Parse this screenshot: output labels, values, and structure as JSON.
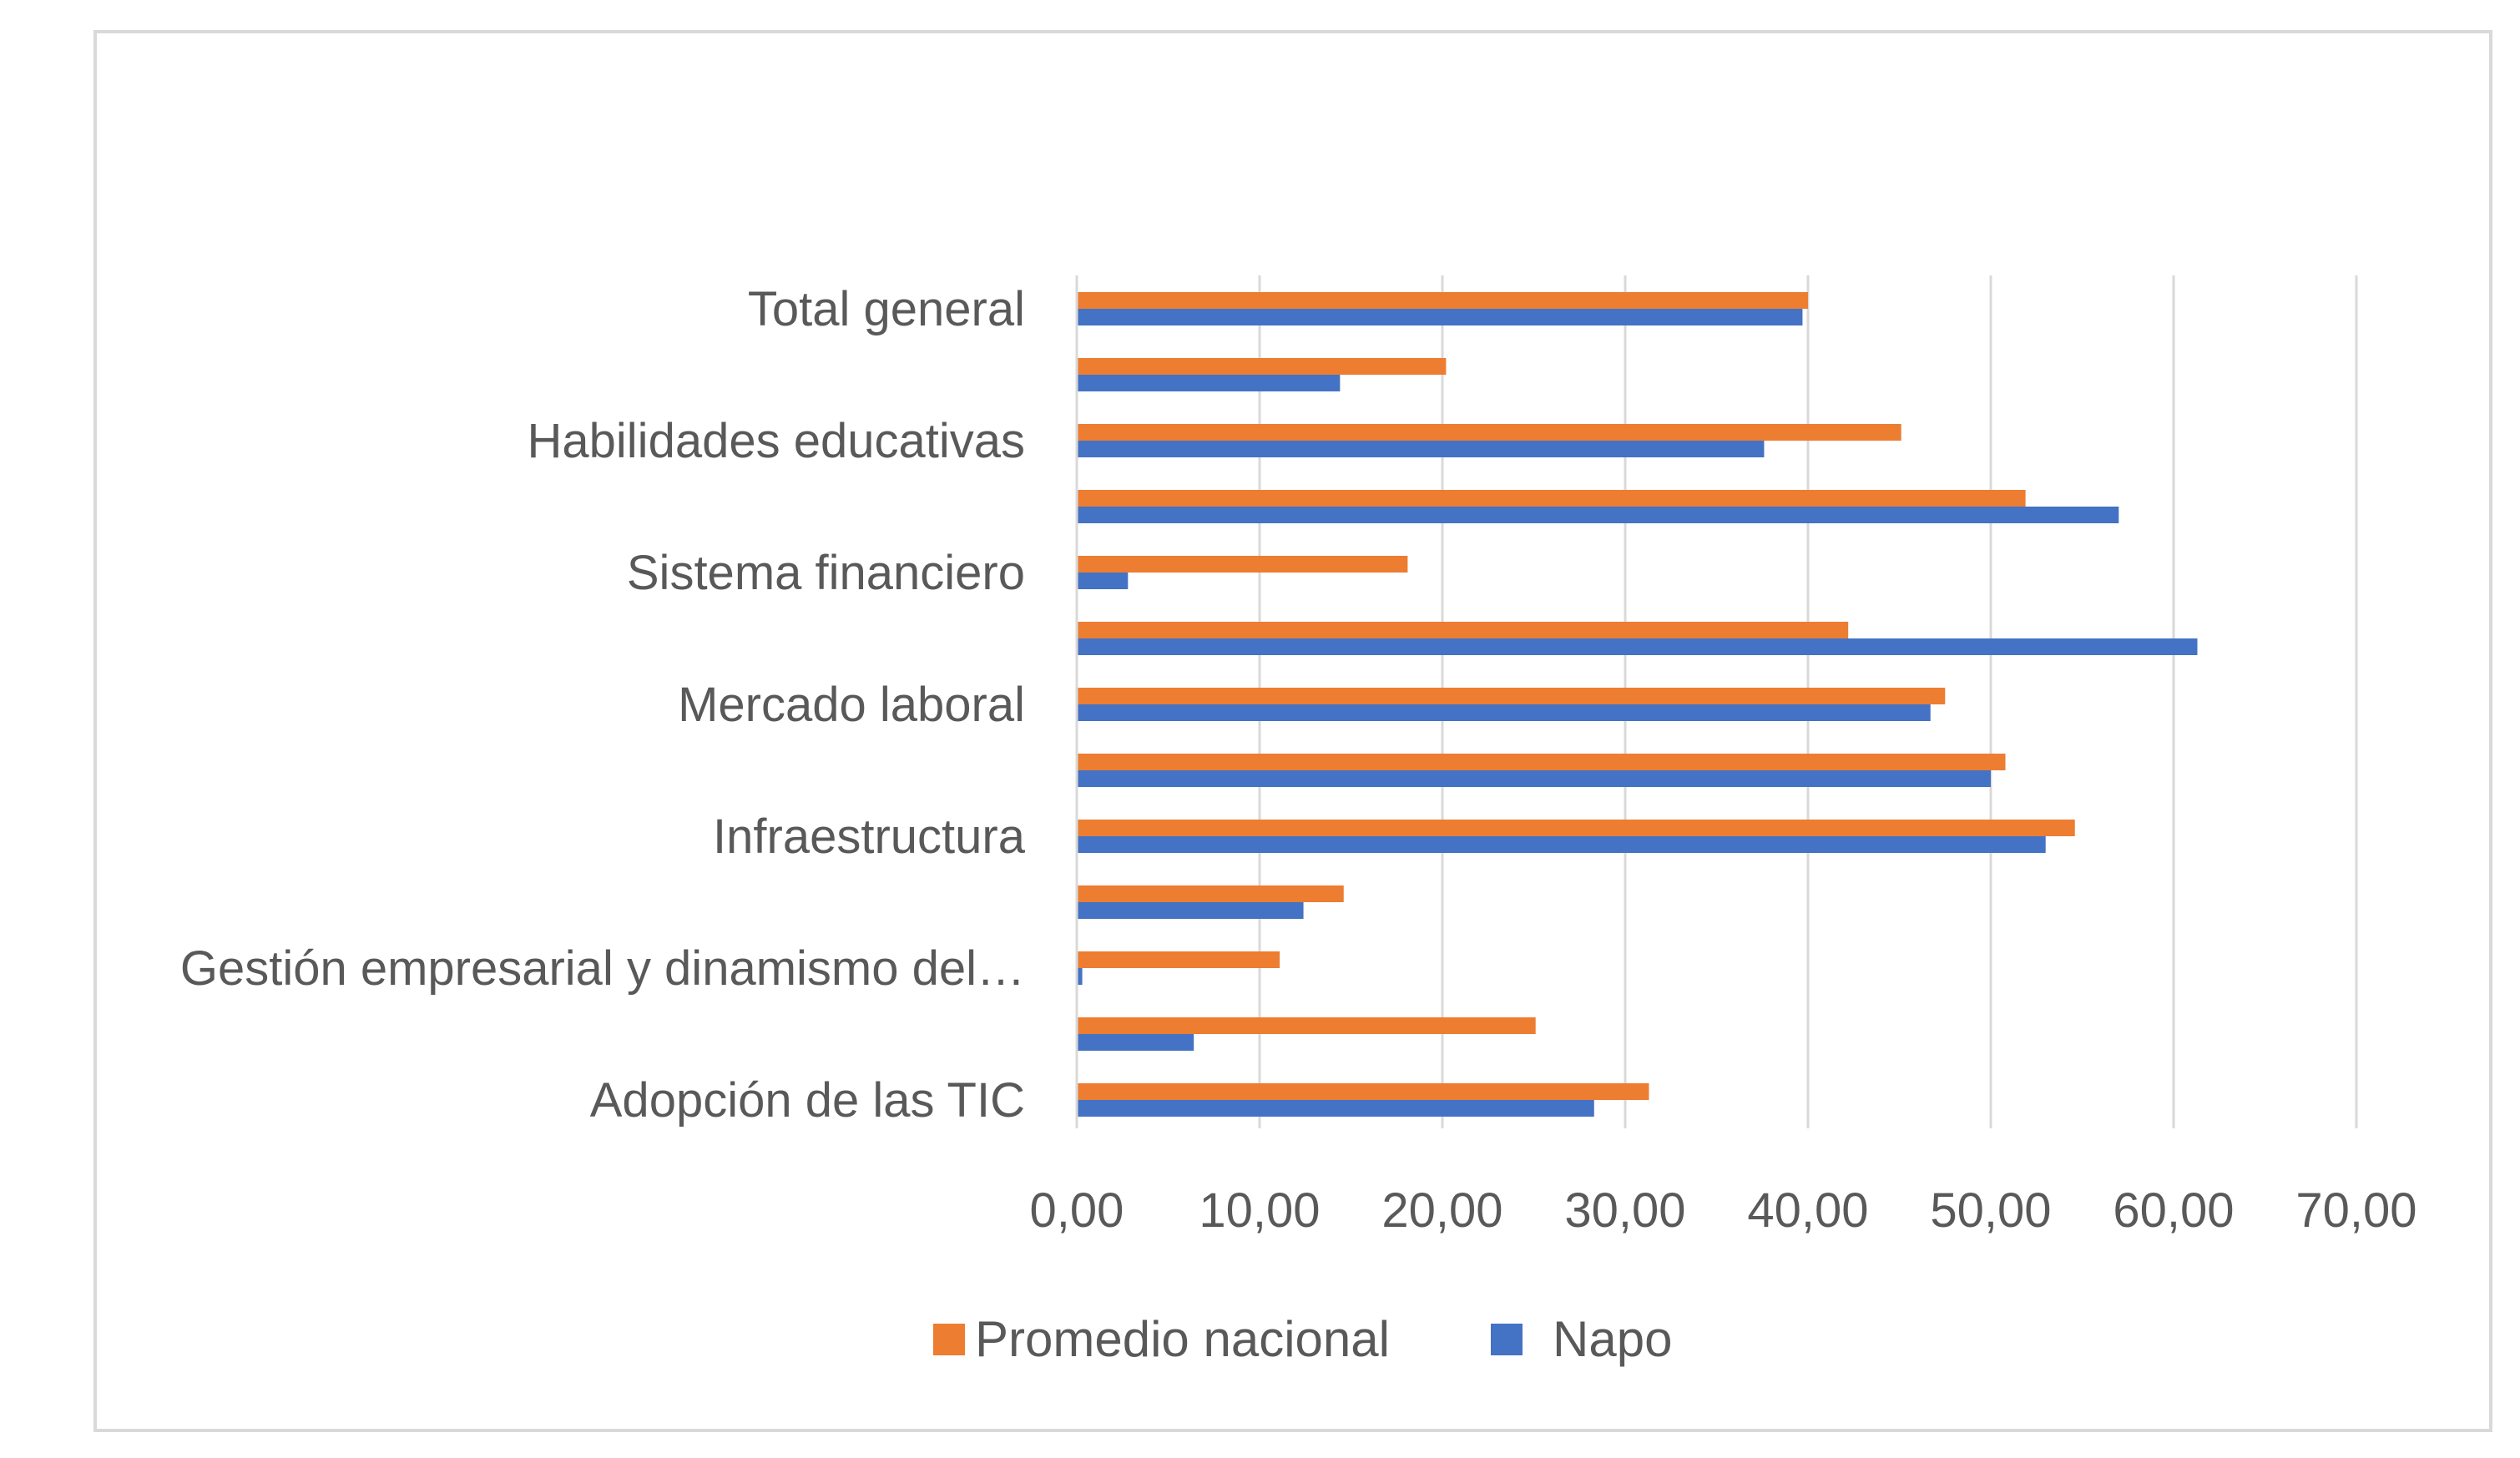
{
  "chart_data": {
    "type": "bar",
    "orientation": "horizontal",
    "categories": [
      "Adopción de las TIC",
      "",
      "Gestión empresarial y dinamismo del…",
      "",
      "Infraestructura",
      "",
      "Mercado laboral",
      "",
      "Sistema financiero",
      "",
      "Habilidades educativas",
      "",
      "Total general"
    ],
    "series": [
      {
        "name": "Promedio nacional",
        "color": "#ED7D31",
        "values": [
          31.3,
          25.1,
          11.1,
          14.6,
          54.6,
          50.8,
          47.5,
          42.2,
          18.1,
          51.9,
          45.1,
          20.2,
          40.0
        ]
      },
      {
        "name": "Napo",
        "color": "#4472C4",
        "values": [
          28.3,
          6.4,
          0.3,
          12.4,
          53.0,
          50.0,
          46.7,
          61.3,
          2.8,
          57.0,
          37.6,
          14.4,
          39.7
        ]
      }
    ],
    "x_ticks": [
      "0,00",
      "10,00",
      "20,00",
      "30,00",
      "40,00",
      "50,00",
      "60,00",
      "70,00"
    ],
    "xlim": [
      0,
      70
    ],
    "grid": "vertical",
    "legend_position": "bottom",
    "title": "",
    "xlabel": "",
    "ylabel": ""
  }
}
